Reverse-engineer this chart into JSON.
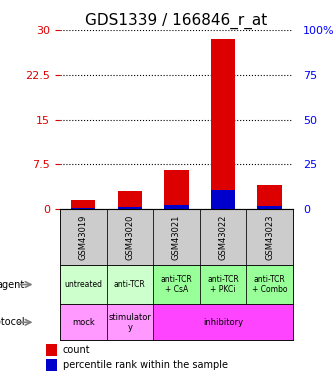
{
  "title": "GDS1339 / 166846_r_at",
  "samples": [
    "GSM43019",
    "GSM43020",
    "GSM43021",
    "GSM43022",
    "GSM43023"
  ],
  "count_values": [
    1.5,
    3.0,
    6.5,
    28.5,
    4.0
  ],
  "percentile_values": [
    0.5,
    1.2,
    2.0,
    10.5,
    1.5
  ],
  "left_ylim": [
    0,
    30
  ],
  "left_yticks": [
    0,
    7.5,
    15,
    22.5,
    30
  ],
  "right_ylim": [
    0,
    100
  ],
  "right_yticks": [
    0,
    25,
    50,
    75,
    100
  ],
  "bar_color_count": "#dd0000",
  "bar_color_pct": "#0000cc",
  "bar_width": 0.35,
  "agent_labels": [
    "untreated",
    "anti-TCR",
    "anti-TCR\n+ CsA",
    "anti-TCR\n+ PKCi",
    "anti-TCR\n+ Combo"
  ],
  "protocol_labels": [
    "mock",
    "stimulator\ny",
    "inhibitory",
    "inhibitory",
    "inhibitory"
  ],
  "agent_colors": [
    "#ccffcc",
    "#ccffcc",
    "#99ff99",
    "#99ff99",
    "#99ff99"
  ],
  "protocol_mock_color": "#ff99ff",
  "protocol_stim_color": "#ff99ff",
  "protocol_inhib_color": "#ff44ff",
  "sample_bg_color": "#cccccc",
  "legend_count_color": "#dd0000",
  "legend_pct_color": "#0000cc",
  "title_fontsize": 11,
  "tick_fontsize": 8,
  "label_fontsize": 8
}
